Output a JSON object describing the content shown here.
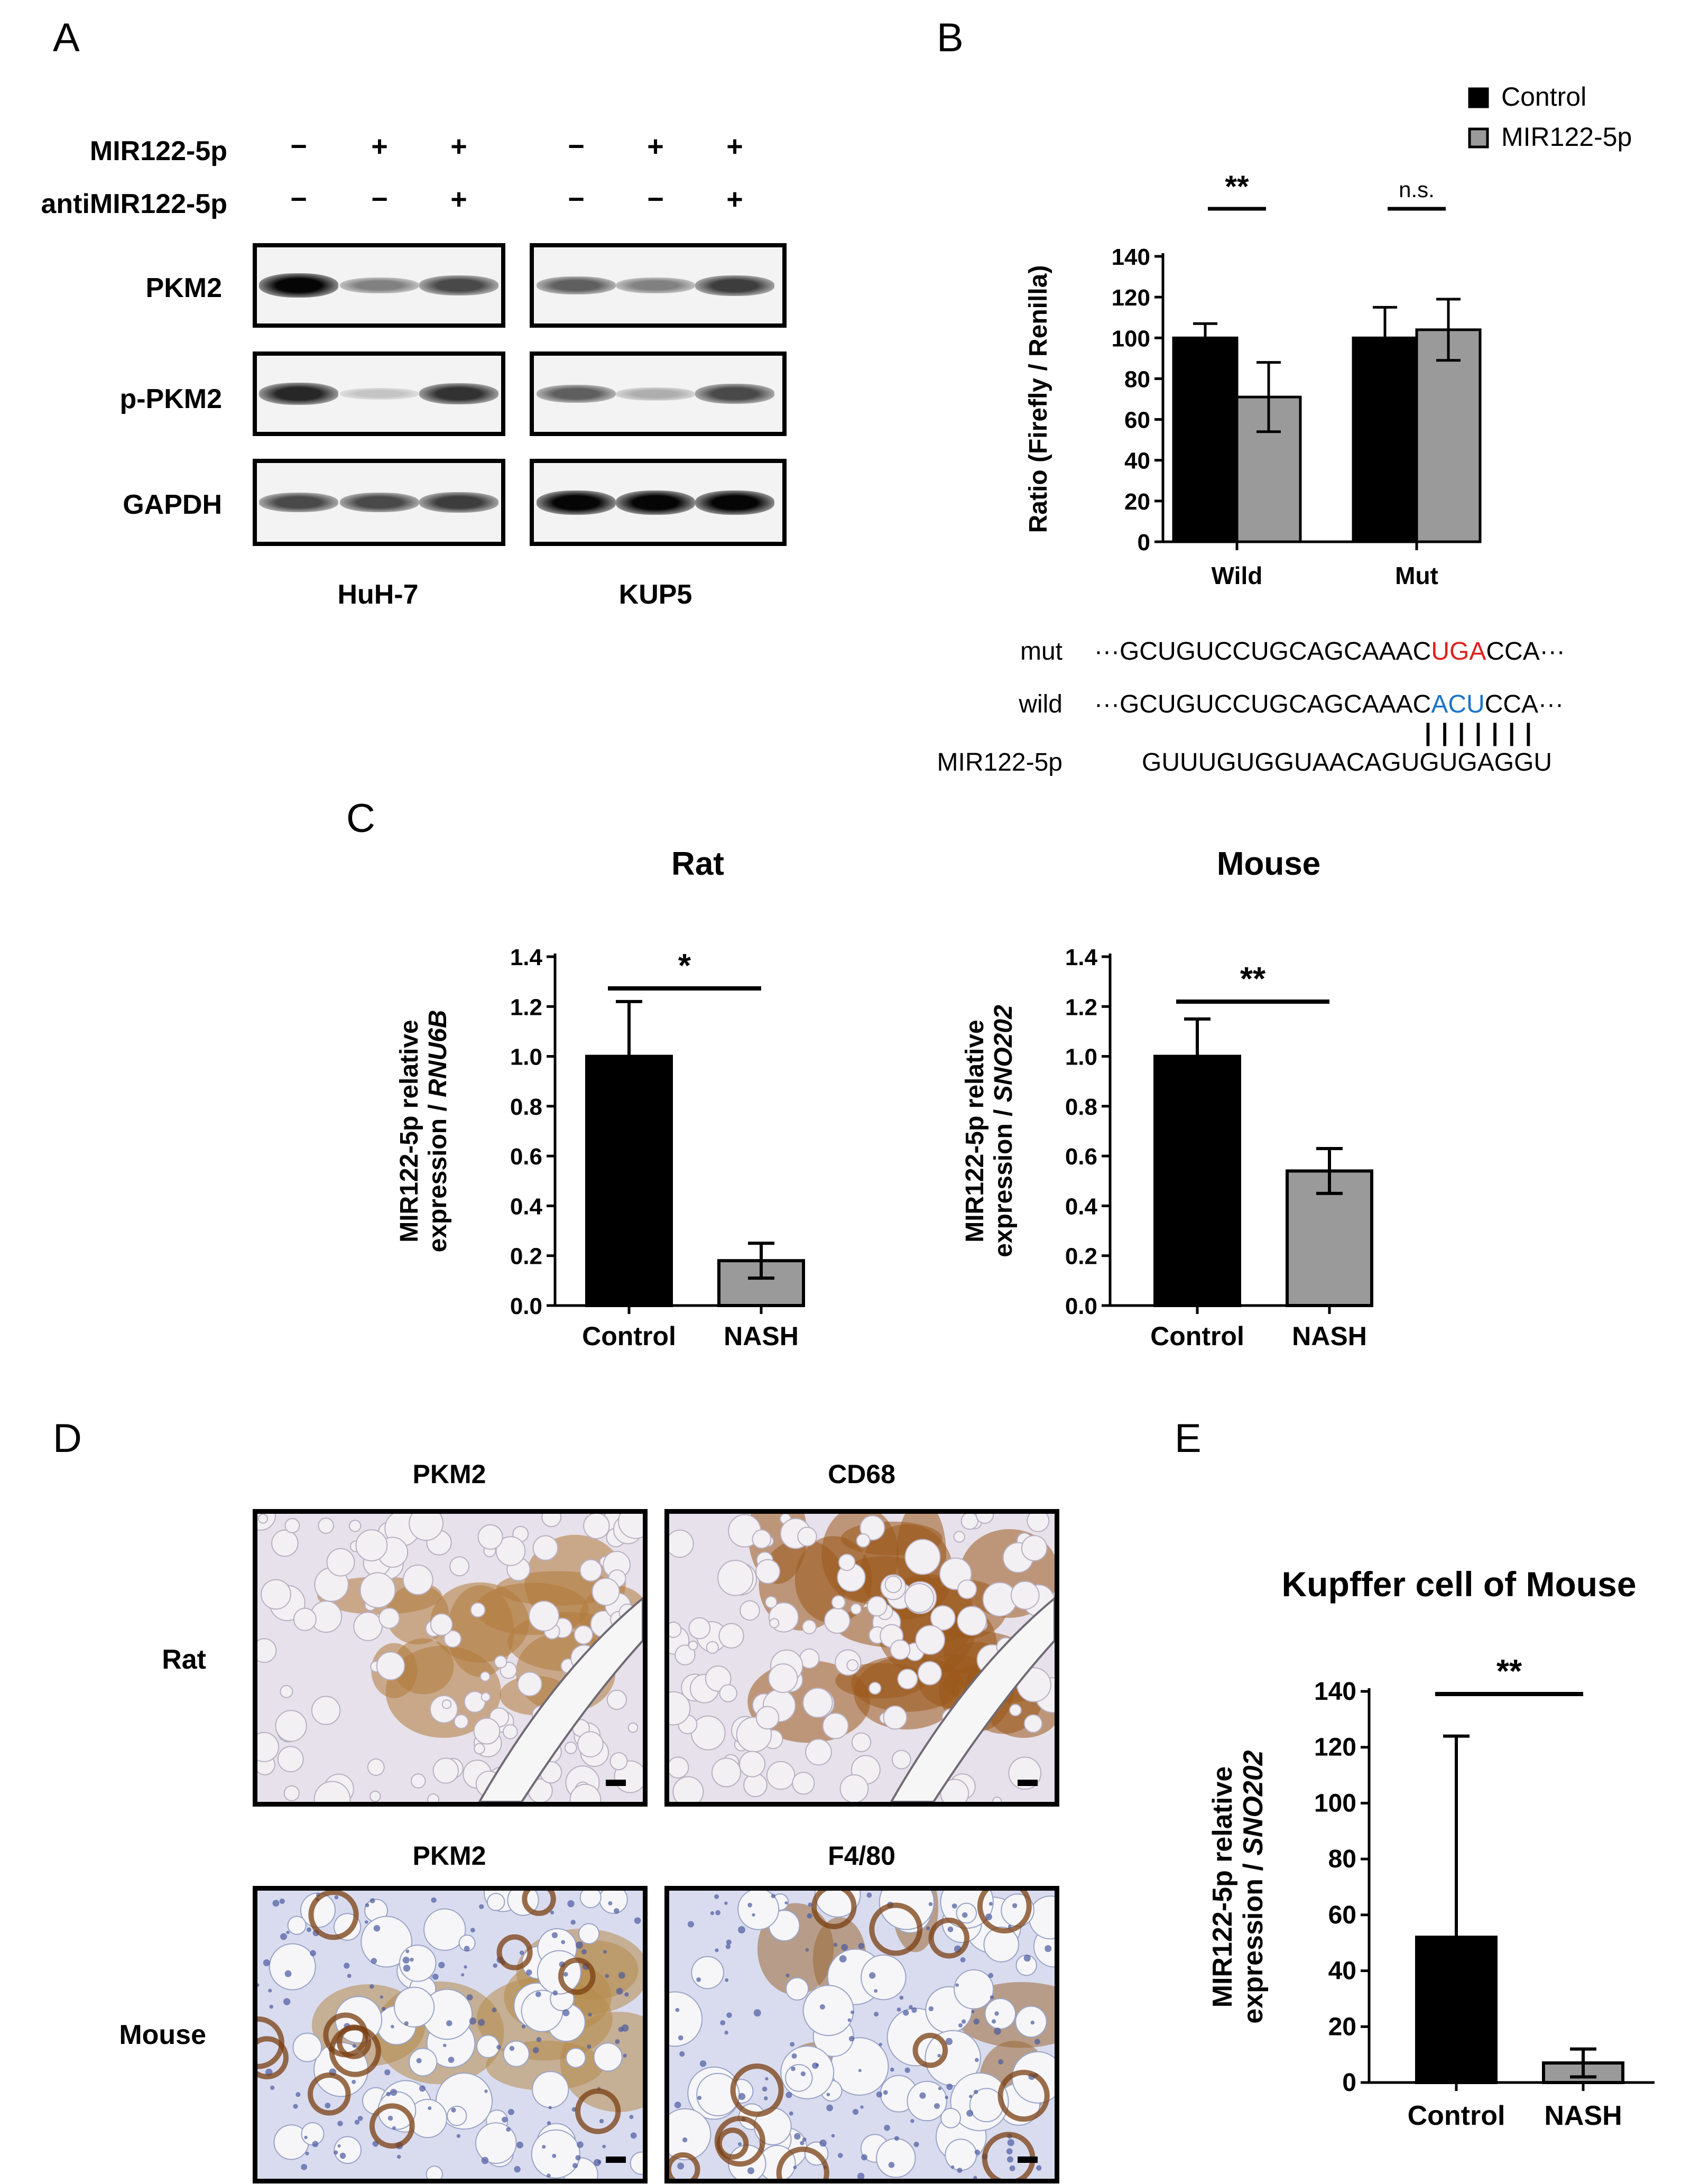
{
  "panels": {
    "A": "A",
    "B": "B",
    "C": "C",
    "D": "D",
    "E": "E"
  },
  "panel_a": {
    "row_labels": [
      "MIR122-5p",
      "antiMIR122-5p"
    ],
    "mir_signs": [
      "−",
      "+",
      "+",
      "−",
      "+",
      "+"
    ],
    "anti_signs": [
      "−",
      "−",
      "+",
      "−",
      "−",
      "+"
    ],
    "blot_labels": [
      "PKM2",
      "p-PKM2",
      "GAPDH"
    ],
    "cell_lines": [
      "HuH-7",
      "KUP5"
    ],
    "band_intensity": {
      "HuH-7": {
        "PKM2": [
          1.0,
          0.45,
          0.7
        ],
        "p-PKM2": [
          0.85,
          0.15,
          0.8
        ],
        "GAPDH": [
          0.7,
          0.7,
          0.75
        ]
      },
      "KUP5": {
        "PKM2": [
          0.6,
          0.45,
          0.75
        ],
        "p-PKM2": [
          0.6,
          0.25,
          0.7
        ],
        "GAPDH": [
          1.0,
          1.0,
          1.0
        ]
      }
    }
  },
  "panel_b": {
    "legend": [
      "Control",
      "MIR122-5p"
    ],
    "sequence_rows": [
      {
        "label": "mut",
        "prefix": "···GCUGUCCUGCAGCAAAC",
        "highlight": "UGA",
        "suffix": "CCA···",
        "color": "#e0201b"
      },
      {
        "label": "wild",
        "prefix": "···GCUGUCCUGCAGCAAAC",
        "highlight": "ACU",
        "suffix": "CCA···",
        "color": "#1a73c9"
      },
      {
        "label": "MIR122-5p",
        "prefix": "GUUUGUGGUAACAGUGUGAGGU",
        "highlight": "",
        "suffix": "",
        "color": "#000000"
      }
    ],
    "pairing_marks": "| | | | | | |"
  },
  "panel_d": {
    "row_labels": [
      "Rat",
      "Mouse"
    ],
    "col_labels_rat": [
      "PKM2",
      "CD68"
    ],
    "col_labels_mouse": [
      "PKM2",
      "F4/80"
    ]
  },
  "chart_data": [
    {
      "id": "B",
      "type": "bar",
      "categories": [
        "Wild",
        "Mut"
      ],
      "series": [
        {
          "name": "Control",
          "values": [
            100,
            100
          ],
          "errors": [
            7,
            15
          ],
          "color": "#000000"
        },
        {
          "name": "MIR122-5p",
          "values": [
            71,
            104
          ],
          "errors": [
            17,
            15
          ],
          "color": "#9a9a9a"
        }
      ],
      "ylabel": "Ratio (Firefly / Renilla)",
      "ylim": [
        0,
        140
      ],
      "yticks": [
        0,
        20,
        40,
        60,
        80,
        100,
        120,
        140
      ],
      "significance": [
        "**",
        "n.s."
      ],
      "legend_position": "top-right"
    },
    {
      "id": "C-rat",
      "type": "bar",
      "title": "Rat",
      "categories": [
        "Control",
        "NASH"
      ],
      "values": [
        1.0,
        0.18
      ],
      "errors": [
        0.22,
        0.07
      ],
      "colors": [
        "#000000",
        "#9a9a9a"
      ],
      "ylabel_line1": "MIR122-5p relative",
      "ylabel_line2_prefix": "expression / ",
      "ylabel_line2_italic": "RNU6B",
      "ylim": [
        0,
        1.4
      ],
      "yticks": [
        "0.0",
        "0.2",
        "0.4",
        "0.6",
        "0.8",
        "1.0",
        "1.2",
        "1.4"
      ],
      "significance": "*"
    },
    {
      "id": "C-mouse",
      "type": "bar",
      "title": "Mouse",
      "categories": [
        "Control",
        "NASH"
      ],
      "values": [
        1.0,
        0.54
      ],
      "errors": [
        0.15,
        0.09
      ],
      "colors": [
        "#000000",
        "#9a9a9a"
      ],
      "ylabel_line1": "MIR122-5p relative",
      "ylabel_line2_prefix": "expression / ",
      "ylabel_line2_italic": "SNO202",
      "ylim": [
        0,
        1.4
      ],
      "yticks": [
        "0.0",
        "0.2",
        "0.4",
        "0.6",
        "0.8",
        "1.0",
        "1.2",
        "1.4"
      ],
      "significance": "**"
    },
    {
      "id": "E",
      "type": "bar",
      "title": "Kupffer cell of Mouse",
      "categories": [
        "Control",
        "NASH"
      ],
      "values": [
        52,
        7
      ],
      "errors": [
        72,
        5
      ],
      "colors": [
        "#000000",
        "#9a9a9a"
      ],
      "ylabel_line1": "MIR122-5p relative",
      "ylabel_line2_prefix": "expression / ",
      "ylabel_line2_italic": "SNO202",
      "ylim": [
        0,
        140
      ],
      "yticks": [
        "0",
        "20",
        "40",
        "60",
        "80",
        "100",
        "120",
        "140"
      ],
      "significance": "**"
    }
  ]
}
